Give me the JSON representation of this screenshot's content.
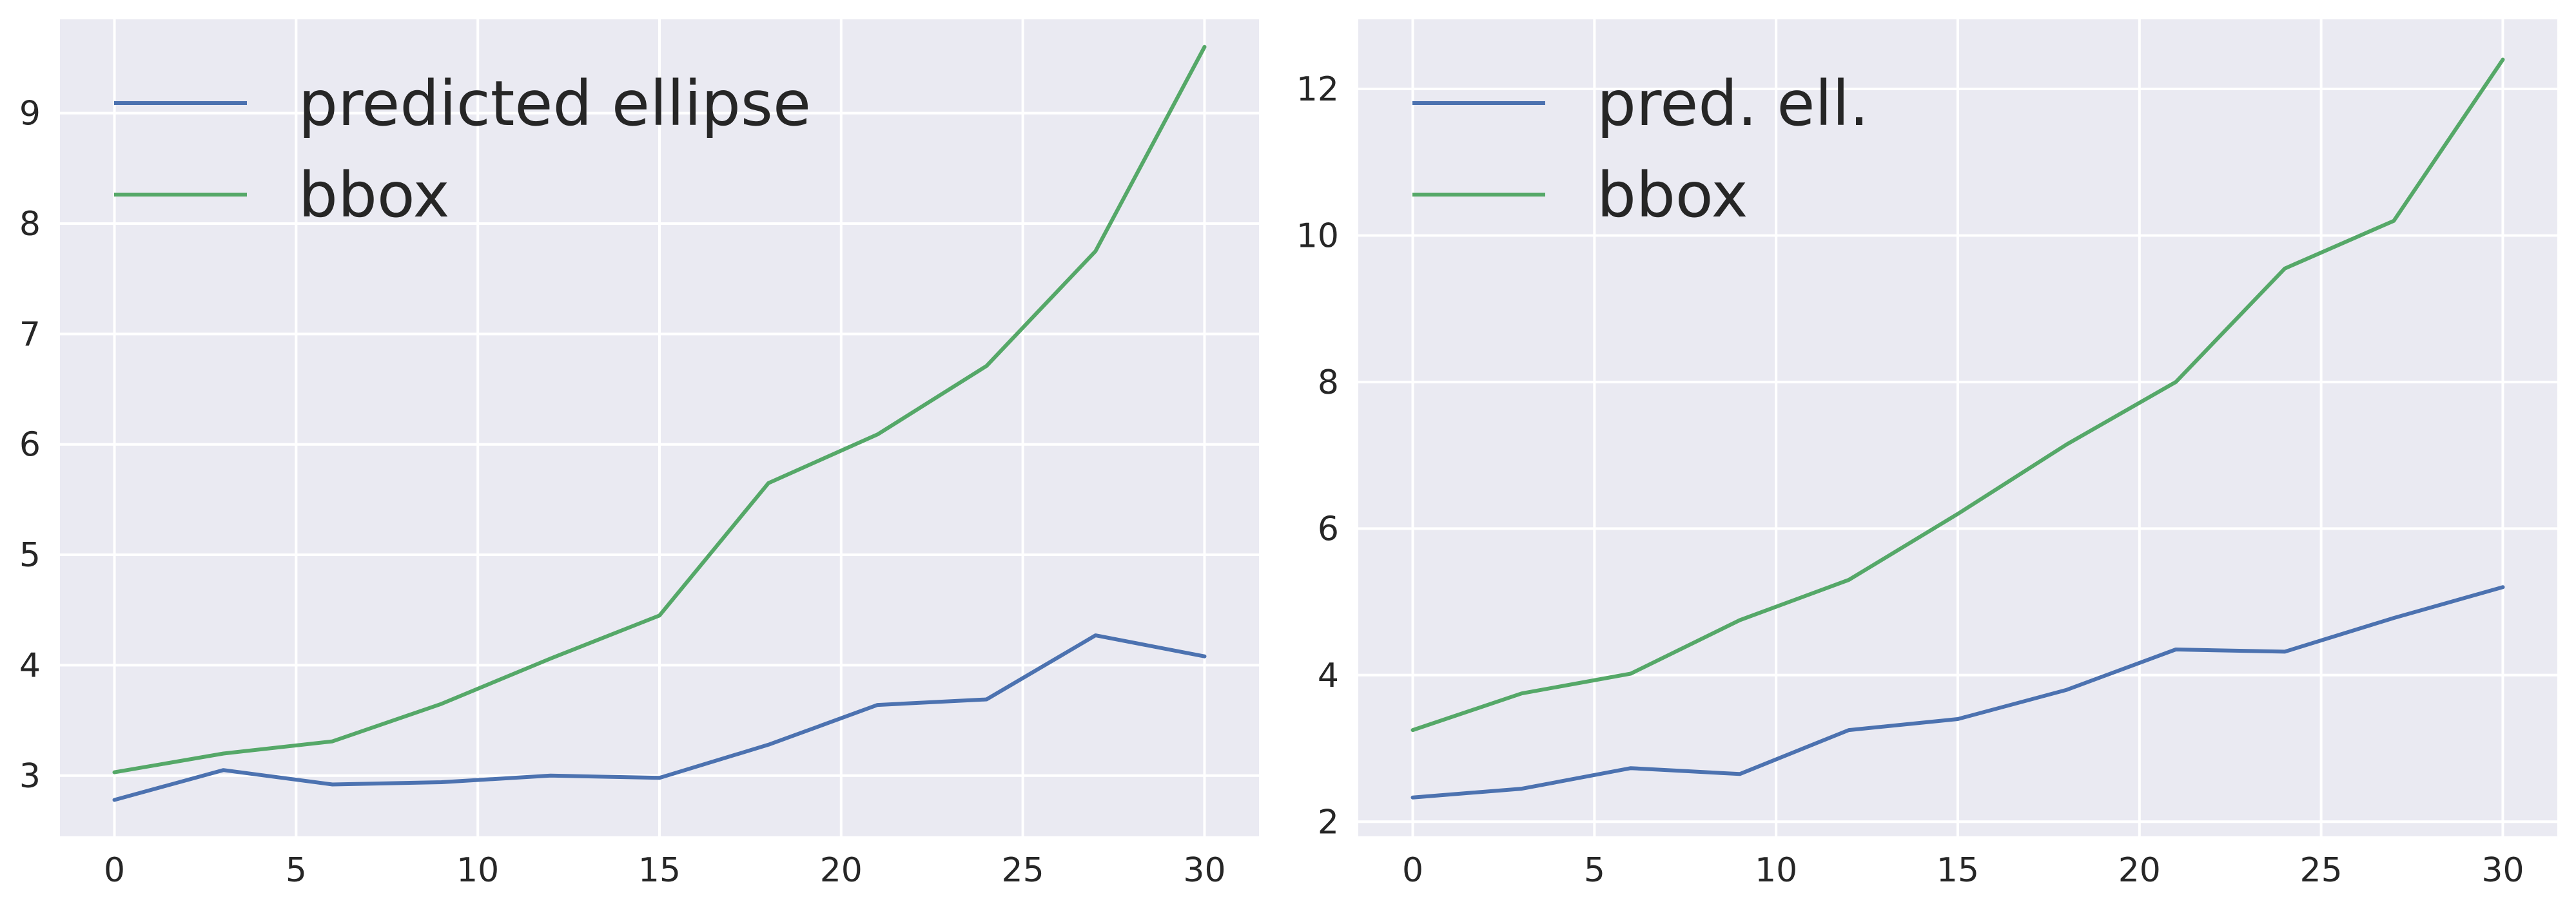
{
  "colors": {
    "background": "#eaeaf2",
    "grid": "#ffffff",
    "text": "#262626",
    "series_blue": "#4c72b0",
    "series_green": "#55a868"
  },
  "chart_data": [
    {
      "type": "line",
      "title": "",
      "xlabel": "",
      "ylabel": "",
      "xlim": [
        -1.5,
        31.5
      ],
      "ylim": [
        2.45,
        9.85
      ],
      "xticks": [
        0,
        5,
        10,
        15,
        20,
        25,
        30
      ],
      "yticks": [
        3,
        4,
        5,
        6,
        7,
        8,
        9
      ],
      "grid": true,
      "legend": {
        "position": "top-left"
      },
      "x": [
        0,
        3,
        6,
        9,
        12,
        15,
        18,
        21,
        24,
        27,
        30
      ],
      "series": [
        {
          "name": "predicted ellipse",
          "color": "#4c72b0",
          "values": [
            2.78,
            3.05,
            2.92,
            2.94,
            3.0,
            2.98,
            3.28,
            3.64,
            3.69,
            4.27,
            4.08
          ]
        },
        {
          "name": "bbox",
          "color": "#55a868",
          "values": [
            3.03,
            3.2,
            3.31,
            3.65,
            4.06,
            4.45,
            5.65,
            6.09,
            6.71,
            7.75,
            9.6
          ]
        }
      ]
    },
    {
      "type": "line",
      "title": "",
      "xlabel": "",
      "ylabel": "",
      "xlim": [
        -1.5,
        31.5
      ],
      "ylim": [
        1.8,
        12.95
      ],
      "xticks": [
        0,
        5,
        10,
        15,
        20,
        25,
        30
      ],
      "yticks": [
        2,
        4,
        6,
        8,
        10,
        12
      ],
      "grid": true,
      "legend": {
        "position": "top-left"
      },
      "x": [
        0,
        3,
        6,
        9,
        12,
        15,
        18,
        21,
        24,
        27,
        30
      ],
      "series": [
        {
          "name": "pred. ell.",
          "color": "#4c72b0",
          "values": [
            2.33,
            2.45,
            2.73,
            2.65,
            3.25,
            3.4,
            3.8,
            4.35,
            4.32,
            4.78,
            5.2
          ]
        },
        {
          "name": "bbox",
          "color": "#55a868",
          "values": [
            3.25,
            3.75,
            4.02,
            4.75,
            5.3,
            6.2,
            7.15,
            8.0,
            9.55,
            10.2,
            12.4
          ]
        }
      ]
    }
  ]
}
